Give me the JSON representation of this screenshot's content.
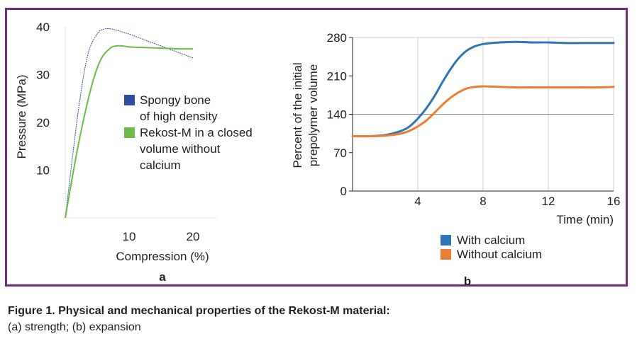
{
  "figure": {
    "caption_title": "Figure 1. Physical and mechanical properties of the Rekost-M material:",
    "caption_text": "(a) strength; (b) expansion",
    "frame_color": "#6b2c82"
  },
  "chart_data": [
    {
      "panel": "a",
      "type": "line",
      "xlabel": "Compression (%)",
      "ylabel": "Pressure (MPa)",
      "xlim": [
        0,
        20
      ],
      "ylim": [
        0,
        40
      ],
      "xticks": [
        "10",
        "20"
      ],
      "yticks": [
        "10",
        "20",
        "30",
        "40"
      ],
      "grid": false,
      "legend_position": "right",
      "series": [
        {
          "name": "Spongy bone of high density",
          "legend_lines": [
            "Spongy bone",
            "of high density"
          ],
          "color": "#2e4da0",
          "x": [
            0,
            2,
            3.5,
            5,
            6,
            7,
            8,
            10,
            12,
            15,
            18,
            20
          ],
          "y": [
            0,
            22,
            34,
            38.5,
            39.5,
            39.6,
            39.3,
            38.5,
            37.5,
            36,
            34.5,
            33.5
          ]
        },
        {
          "name": "Rekost-M in a closed volume without calcium",
          "legend_lines": [
            "Rekost-M in a closed",
            "volume without",
            "calcium"
          ],
          "color": "#6cbd45",
          "x": [
            0,
            2,
            4,
            5.5,
            7,
            8,
            9,
            10,
            12,
            14,
            16,
            18,
            20
          ],
          "y": [
            0,
            15,
            27,
            33,
            35.5,
            36,
            36,
            35.8,
            35.7,
            35.6,
            35.5,
            35.4,
            35.4
          ]
        }
      ]
    },
    {
      "panel": "b",
      "type": "line",
      "xlabel": "Time (min)",
      "ylabel_lines": [
        "Percent of the initial",
        "prepolymer volume"
      ],
      "xlim": [
        0,
        16
      ],
      "ylim": [
        0,
        280
      ],
      "xticks": [
        "4",
        "8",
        "12",
        "16"
      ],
      "yticks": [
        "0",
        "70",
        "140",
        "210",
        "280"
      ],
      "grid": true,
      "legend_position": "bottom",
      "series": [
        {
          "name": "With calcium",
          "color": "#2e75b6",
          "x": [
            0,
            1,
            2,
            3,
            3.5,
            4,
            4.5,
            5,
            5.5,
            6,
            6.5,
            7,
            7.5,
            8,
            9,
            10,
            11,
            12,
            13,
            14,
            15,
            16
          ],
          "y": [
            100,
            100,
            102,
            110,
            118,
            132,
            150,
            172,
            198,
            222,
            242,
            256,
            264,
            268,
            271,
            272,
            271,
            271,
            270,
            270,
            270,
            270
          ]
        },
        {
          "name": "Without calcium",
          "color": "#ed7d31",
          "x": [
            0,
            1,
            2,
            3,
            3.5,
            4,
            4.5,
            5,
            5.5,
            6,
            6.5,
            7,
            7.5,
            8,
            9,
            10,
            11,
            12,
            13,
            14,
            15,
            16
          ],
          "y": [
            100,
            100,
            101,
            105,
            110,
            118,
            128,
            142,
            157,
            170,
            180,
            187,
            190,
            191,
            190,
            189,
            189,
            189,
            189,
            189,
            189,
            190
          ]
        }
      ]
    }
  ]
}
